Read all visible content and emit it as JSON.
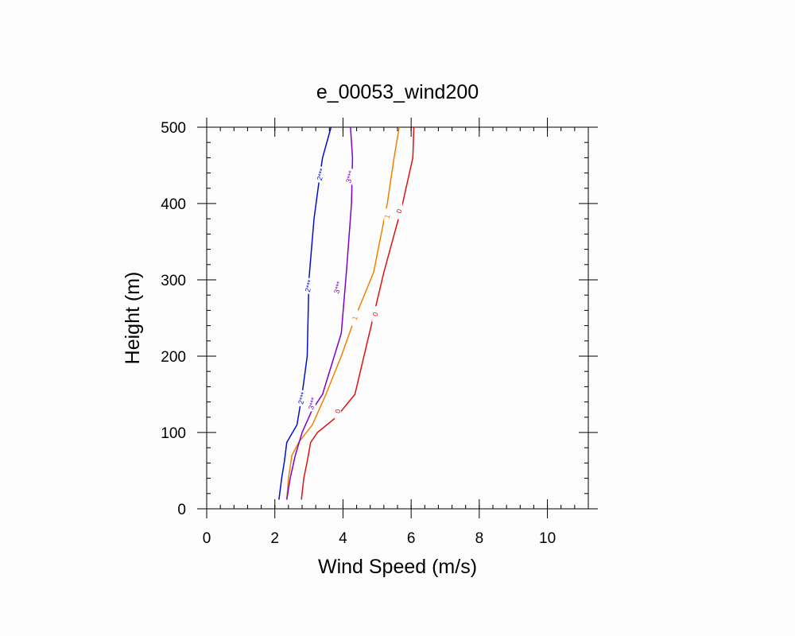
{
  "chart_data": {
    "type": "line",
    "title": "e_00053_wind200",
    "xlabel": "Wind Speed (m/s)",
    "ylabel": "Height (m)",
    "xlim": [
      0,
      11.2
    ],
    "ylim": [
      0,
      500
    ],
    "xticks": [
      "0",
      "2",
      "4",
      "6",
      "8",
      "10"
    ],
    "yticks": [
      "0",
      "100",
      "200",
      "300",
      "400",
      "500"
    ],
    "grid": false,
    "legend": "none",
    "series": [
      {
        "label": "0",
        "color": "#e01010",
        "x": [
          2.78,
          2.85,
          2.95,
          3.05,
          3.25,
          3.8,
          4.35,
          5.2,
          5.75,
          6.05,
          6.08
        ],
        "y": [
          12,
          40,
          62,
          87,
          100,
          120,
          150,
          310,
          400,
          460,
          500
        ],
        "label_at": [
          [
            3.85,
            128
          ],
          [
            4.95,
            255
          ],
          [
            5.65,
            390
          ]
        ]
      },
      {
        "label": "1",
        "color": "#f08000",
        "x": [
          2.35,
          2.4,
          2.5,
          2.7,
          3.1,
          3.5,
          3.95,
          4.35,
          4.9,
          5.3,
          5.5,
          5.65
        ],
        "y": [
          12,
          40,
          70,
          87,
          110,
          150,
          200,
          250,
          310,
          400,
          460,
          500
        ],
        "label_at": [
          [
            4.35,
            250
          ],
          [
            5.3,
            383
          ]
        ]
      },
      {
        "label": "2***",
        "color": "#0010d0",
        "x": [
          2.12,
          2.2,
          2.28,
          2.35,
          2.65,
          2.8,
          2.95,
          3.0,
          3.15,
          3.3,
          3.4,
          3.65
        ],
        "y": [
          12,
          40,
          62,
          87,
          110,
          150,
          200,
          300,
          380,
          430,
          460,
          500
        ],
        "label_at": [
          [
            2.8,
            145
          ],
          [
            3.0,
            292
          ],
          [
            3.35,
            438
          ]
        ]
      },
      {
        "label": "3***",
        "color": "#8000cc",
        "x": [
          2.35,
          2.45,
          2.6,
          2.8,
          3.1,
          3.4,
          3.95,
          4.1,
          4.25,
          4.28,
          4.25,
          4.22
        ],
        "y": [
          12,
          40,
          70,
          100,
          130,
          150,
          230,
          310,
          400,
          460,
          480,
          500
        ],
        "label_at": [
          [
            3.1,
            138
          ],
          [
            3.85,
            290
          ],
          [
            4.2,
            435
          ]
        ]
      }
    ]
  }
}
